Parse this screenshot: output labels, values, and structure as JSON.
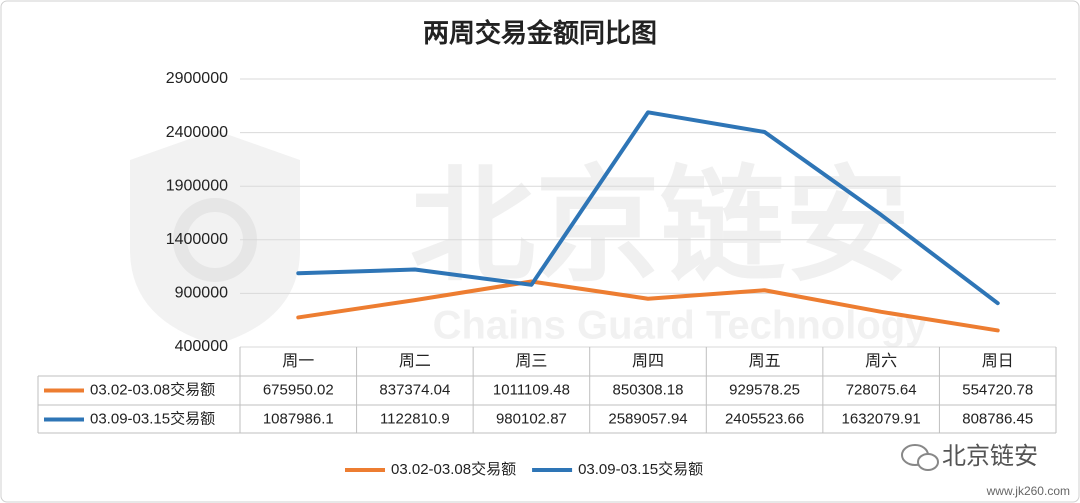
{
  "chart_data": {
    "type": "line",
    "title": "两周交易金额同比图",
    "categories": [
      "周一",
      "周二",
      "周三",
      "周四",
      "周五",
      "周六",
      "周日"
    ],
    "series": [
      {
        "name": "03.02-03.08交易额",
        "color": "#ed7d31",
        "values": [
          675950.02,
          837374.04,
          1011109.48,
          850308.18,
          929578.25,
          728075.64,
          554720.78
        ]
      },
      {
        "name": "03.09-03.15交易额",
        "color": "#2e75b6",
        "values": [
          1087986.1,
          1122810.9,
          980102.87,
          2589057.94,
          2405523.66,
          1632079.91,
          808786.45
        ]
      }
    ],
    "ylim": [
      400000,
      2900000
    ],
    "yticks": [
      400000,
      900000,
      1400000,
      1900000,
      2400000,
      2900000
    ],
    "grid": true,
    "data_table": true,
    "legend": "bottom"
  },
  "watermark": {
    "name": "北京链安",
    "subtitle": "Chains Guard Technology"
  },
  "footer": {
    "logo": "北京链安",
    "site": "www.jk260.com"
  }
}
